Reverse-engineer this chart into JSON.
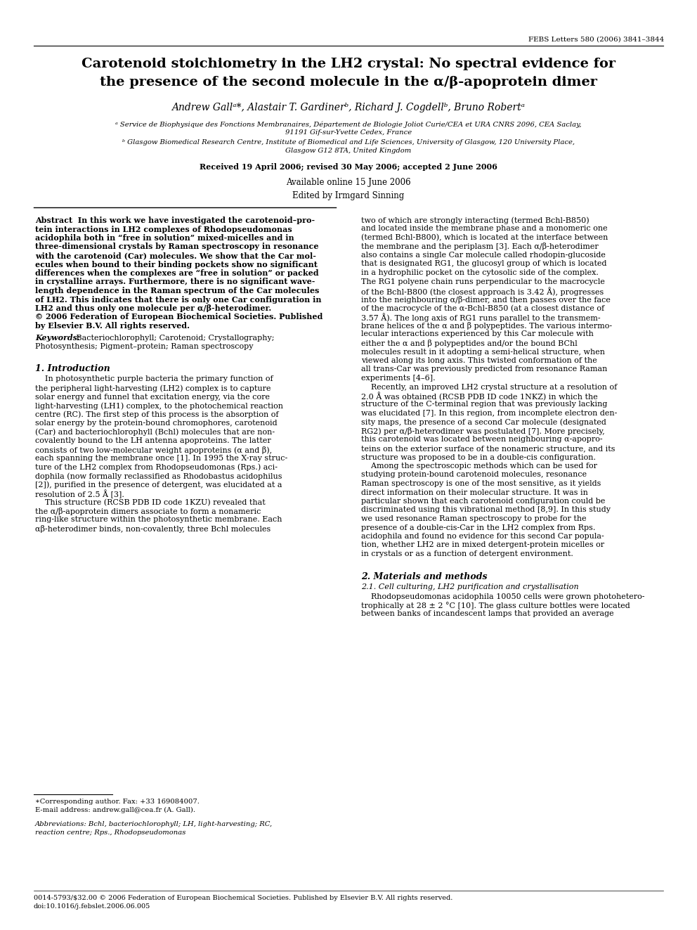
{
  "journal_ref": "FEBS Letters 580 (2006) 3841–3844",
  "title_line1": "Carotenoid stoichiometry in the LH2 crystal: No spectral evidence for",
  "title_line2": "the presence of the second molecule in the α/β-apoprotein dimer",
  "bg_color": "#ffffff"
}
